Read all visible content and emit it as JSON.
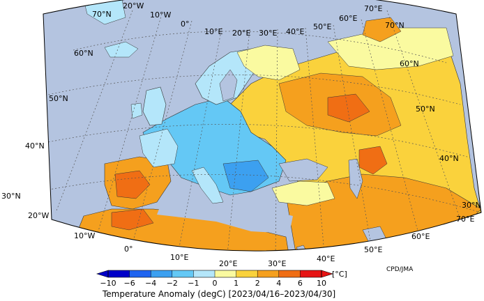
{
  "map": {
    "credit": "CPD/JMA",
    "latitude_labels_left": [
      "70°N",
      "60°N",
      "50°N",
      "40°N",
      "30°N"
    ],
    "latitude_labels_right": [
      "70°N",
      "60°N",
      "50°N",
      "40°N",
      "30°N"
    ],
    "longitude_labels_top": [
      "20°W",
      "10°W",
      "0°",
      "10°E",
      "20°E",
      "30°E",
      "40°E",
      "50°E",
      "60°E",
      "70°E"
    ],
    "longitude_labels_bottom": [
      "20°W",
      "10°W",
      "0°",
      "10°E",
      "20°E",
      "30°E",
      "40°E",
      "50°E",
      "60°E",
      "70°E"
    ]
  },
  "colorbar": {
    "unit": "[°C]",
    "tick_labels": [
      "−10",
      "−6",
      "−4",
      "−2",
      "−1",
      "0",
      "1",
      "2",
      "4",
      "6",
      "10"
    ],
    "bin_colors": [
      "#0000c8",
      "#1e64f0",
      "#3ca0f0",
      "#64c8f5",
      "#b4e6fa",
      "#fafaa0",
      "#fad23c",
      "#f5a01e",
      "#f06e14",
      "#e61414"
    ],
    "title": "Temperature Anomaly (degC) [2023/04/16–2023/04/30]"
  },
  "colors": {
    "ocean": "#b4c4e0",
    "graticule": "#555555"
  }
}
